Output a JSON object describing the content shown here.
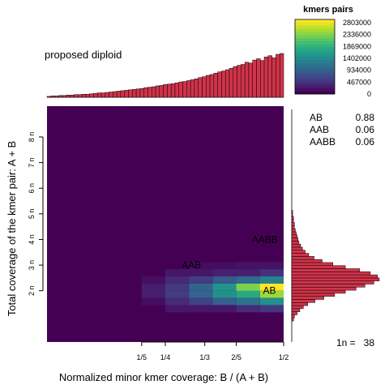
{
  "chart_data": {
    "type": "heatmap",
    "title": "proposed diploid",
    "xlabel": "Normalized minor kmer coverage: B / (A + B)",
    "ylabel": "Total coverage of the kmer pair: A + B",
    "xlim": [
      0,
      0.5
    ],
    "ylim": [
      0,
      4.6
    ],
    "x_ticks": [
      {
        "label": "1/5",
        "value": 0.2
      },
      {
        "label": "1/4",
        "value": 0.25
      },
      {
        "label": "1/3",
        "value": 0.3333
      },
      {
        "label": "2/5",
        "value": 0.4
      },
      {
        "label": "1/2",
        "value": 0.5
      }
    ],
    "y_ticks": [
      {
        "label": "2 n",
        "value": 1
      },
      {
        "label": "3 n",
        "value": 1.5
      },
      {
        "label": "4 n",
        "value": 2
      },
      {
        "label": "5 n",
        "value": 2.5
      },
      {
        "label": "6 n",
        "value": 3
      },
      {
        "label": "7 n",
        "value": 3.5
      },
      {
        "label": "8 n",
        "value": 4
      }
    ],
    "legend": {
      "title": "kmers pairs",
      "position": "top-right",
      "min": 0,
      "max": 2803000,
      "ticks": [
        "2803000",
        "2336000",
        "1869000",
        "1402000",
        "934000",
        "467000",
        "0"
      ]
    },
    "peak_labels": [
      {
        "label": "AB",
        "x": 0.47,
        "y": 1.0
      },
      {
        "label": "AAB",
        "x": 0.305,
        "y": 1.5
      },
      {
        "label": "AABB",
        "x": 0.46,
        "y": 2.0
      }
    ],
    "genotype_proportions": [
      {
        "genotype": "AB",
        "value": "0.88"
      },
      {
        "genotype": "AAB",
        "value": "0.06"
      },
      {
        "genotype": "AABB",
        "value": "0.06"
      }
    ],
    "one_n_label": "1n = ",
    "one_n_value": "38",
    "heatmap_cells": [
      {
        "x0": 0.4,
        "x1": 0.5,
        "y0": 1.0,
        "y1": 1.14,
        "v": 1.0
      },
      {
        "x0": 0.45,
        "x1": 0.5,
        "y0": 0.86,
        "y1": 1.0,
        "v": 0.85
      },
      {
        "x0": 0.4,
        "x1": 0.45,
        "y0": 0.86,
        "y1": 1.0,
        "v": 0.6
      },
      {
        "x0": 0.4,
        "x1": 0.45,
        "y0": 1.0,
        "y1": 1.14,
        "v": 0.8
      },
      {
        "x0": 0.45,
        "x1": 0.5,
        "y0": 0.72,
        "y1": 0.86,
        "v": 0.5
      },
      {
        "x0": 0.4,
        "x1": 0.45,
        "y0": 0.72,
        "y1": 0.86,
        "v": 0.38
      },
      {
        "x0": 0.45,
        "x1": 0.5,
        "y0": 1.14,
        "y1": 1.28,
        "v": 0.45
      },
      {
        "x0": 0.4,
        "x1": 0.45,
        "y0": 1.14,
        "y1": 1.28,
        "v": 0.34
      },
      {
        "x0": 0.35,
        "x1": 0.4,
        "y0": 0.86,
        "y1": 1.0,
        "v": 0.5
      },
      {
        "x0": 0.35,
        "x1": 0.4,
        "y0": 1.0,
        "y1": 1.14,
        "v": 0.52
      },
      {
        "x0": 0.35,
        "x1": 0.4,
        "y0": 0.72,
        "y1": 0.86,
        "v": 0.3
      },
      {
        "x0": 0.35,
        "x1": 0.4,
        "y0": 1.14,
        "y1": 1.28,
        "v": 0.28
      },
      {
        "x0": 0.3,
        "x1": 0.35,
        "y0": 0.86,
        "y1": 1.0,
        "v": 0.32
      },
      {
        "x0": 0.3,
        "x1": 0.35,
        "y0": 1.0,
        "y1": 1.14,
        "v": 0.32
      },
      {
        "x0": 0.3,
        "x1": 0.35,
        "y0": 0.72,
        "y1": 0.86,
        "v": 0.2
      },
      {
        "x0": 0.3,
        "x1": 0.35,
        "y0": 1.14,
        "y1": 1.28,
        "v": 0.18
      },
      {
        "x0": 0.25,
        "x1": 0.3,
        "y0": 0.86,
        "y1": 1.0,
        "v": 0.18
      },
      {
        "x0": 0.25,
        "x1": 0.3,
        "y0": 1.0,
        "y1": 1.14,
        "v": 0.17
      },
      {
        "x0": 0.25,
        "x1": 0.3,
        "y0": 0.72,
        "y1": 0.86,
        "v": 0.12
      },
      {
        "x0": 0.25,
        "x1": 0.3,
        "y0": 1.14,
        "y1": 1.28,
        "v": 0.11
      },
      {
        "x0": 0.2,
        "x1": 0.25,
        "y0": 0.86,
        "y1": 1.14,
        "v": 0.08
      },
      {
        "x0": 0.45,
        "x1": 0.5,
        "y0": 0.58,
        "y1": 0.72,
        "v": 0.16
      },
      {
        "x0": 0.4,
        "x1": 0.45,
        "y0": 0.58,
        "y1": 0.72,
        "v": 0.12
      },
      {
        "x0": 0.45,
        "x1": 0.5,
        "y0": 1.28,
        "y1": 1.42,
        "v": 0.14
      },
      {
        "x0": 0.35,
        "x1": 0.45,
        "y0": 1.28,
        "y1": 1.42,
        "v": 0.09
      },
      {
        "x0": 0.25,
        "x1": 0.35,
        "y0": 1.28,
        "y1": 1.42,
        "v": 0.06
      },
      {
        "x0": 0.25,
        "x1": 0.4,
        "y0": 0.58,
        "y1": 0.72,
        "v": 0.06
      },
      {
        "x0": 0.4,
        "x1": 0.5,
        "y0": 1.42,
        "y1": 1.56,
        "v": 0.05
      },
      {
        "x0": 0.3,
        "x1": 0.4,
        "y0": 1.42,
        "y1": 1.56,
        "v": 0.035
      },
      {
        "x0": 0.2,
        "x1": 0.25,
        "y0": 0.72,
        "y1": 0.86,
        "v": 0.04
      },
      {
        "x0": 0.2,
        "x1": 0.25,
        "y0": 1.14,
        "y1": 1.28,
        "v": 0.04
      }
    ],
    "top_histogram": [
      2,
      3,
      3,
      4,
      4,
      5,
      5,
      6,
      6,
      7,
      7,
      8,
      9,
      10,
      10,
      11,
      12,
      13,
      14,
      15,
      16,
      17,
      18,
      19,
      20,
      22,
      23,
      24,
      26,
      27,
      29,
      30,
      31,
      33,
      35,
      36,
      38,
      40,
      42,
      45,
      47,
      50,
      52,
      55,
      58,
      60,
      63,
      66,
      70,
      73,
      75,
      80,
      78,
      85,
      88,
      84,
      92,
      95,
      90,
      98,
      100
    ],
    "right_histogram": [
      {
        "y": 0.44,
        "len": 2
      },
      {
        "y": 0.5,
        "len": 3
      },
      {
        "y": 0.56,
        "len": 6
      },
      {
        "y": 0.62,
        "len": 9
      },
      {
        "y": 0.68,
        "len": 13
      },
      {
        "y": 0.74,
        "len": 18
      },
      {
        "y": 0.8,
        "len": 26
      },
      {
        "y": 0.86,
        "len": 36
      },
      {
        "y": 0.92,
        "len": 48
      },
      {
        "y": 0.98,
        "len": 60
      },
      {
        "y": 1.04,
        "len": 72
      },
      {
        "y": 1.1,
        "len": 82
      },
      {
        "y": 1.16,
        "len": 92
      },
      {
        "y": 1.22,
        "len": 98
      },
      {
        "y": 1.28,
        "len": 96
      },
      {
        "y": 1.34,
        "len": 88
      },
      {
        "y": 1.4,
        "len": 76
      },
      {
        "y": 1.46,
        "len": 60
      },
      {
        "y": 1.52,
        "len": 46
      },
      {
        "y": 1.58,
        "len": 34
      },
      {
        "y": 1.64,
        "len": 25
      },
      {
        "y": 1.7,
        "len": 19
      },
      {
        "y": 1.76,
        "len": 15
      },
      {
        "y": 1.82,
        "len": 12
      },
      {
        "y": 1.88,
        "len": 10
      },
      {
        "y": 1.94,
        "len": 8
      },
      {
        "y": 2.0,
        "len": 7
      },
      {
        "y": 2.06,
        "len": 6
      },
      {
        "y": 2.12,
        "len": 5
      },
      {
        "y": 2.18,
        "len": 4
      },
      {
        "y": 2.24,
        "len": 3
      },
      {
        "y": 2.3,
        "len": 3
      },
      {
        "y": 2.36,
        "len": 2
      },
      {
        "y": 2.42,
        "len": 2
      },
      {
        "y": 2.48,
        "len": 1
      },
      {
        "y": 2.54,
        "len": 1
      }
    ],
    "colors": {
      "background_cell": "#440154",
      "histogram_fill": "#d1334a",
      "histogram_stroke": "#000000",
      "viridis": [
        "#440154",
        "#482878",
        "#3e4989",
        "#31688e",
        "#26828e",
        "#1f9e89",
        "#35b779",
        "#6ece58",
        "#b5de2b",
        "#fde725"
      ]
    }
  }
}
